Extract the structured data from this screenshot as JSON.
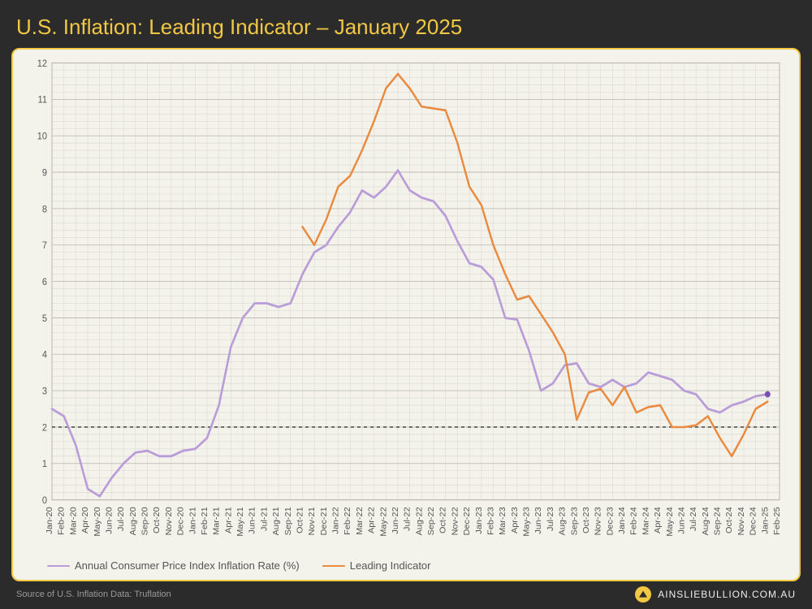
{
  "title": "U.S. Inflation: Leading Indicator – January 2025",
  "source": "Source of U.S. Inflation Data: Truflation",
  "brand": "AINSLIEBULLION.COM.AU",
  "chart": {
    "type": "line",
    "background_color": "#f3f2eb",
    "frame_border_color": "#f2c744",
    "grid_color_major": "#b8b6ad",
    "grid_color_minor": "#d9d7cd",
    "axis_color": "#555555",
    "reference_line": {
      "y": 2,
      "color": "#333333",
      "dash": "4,4",
      "width": 1.2
    },
    "ylim": [
      0,
      12
    ],
    "ytick_step": 1,
    "x_labels": [
      "Jan-20",
      "Feb-20",
      "Mar-20",
      "Apr-20",
      "May-20",
      "Jun-20",
      "Jul-20",
      "Aug-20",
      "Sep-20",
      "Oct-20",
      "Nov-20",
      "Dec-20",
      "Jan-21",
      "Feb-21",
      "Mar-21",
      "Apr-21",
      "May-21",
      "Jun-21",
      "Jul-21",
      "Aug-21",
      "Sep-21",
      "Oct-21",
      "Nov-21",
      "Dec-21",
      "Jan-22",
      "Feb-22",
      "Mar-22",
      "Apr-22",
      "May-22",
      "Jun-22",
      "Jul-22",
      "Aug-22",
      "Sep-22",
      "Oct-22",
      "Nov-22",
      "Dec-22",
      "Jan-23",
      "Feb-23",
      "Mar-23",
      "Apr-23",
      "May-23",
      "Jun-23",
      "Jul-23",
      "Aug-23",
      "Sep-23",
      "Oct-23",
      "Nov-23",
      "Dec-23",
      "Jan-24",
      "Feb-24",
      "Mar-24",
      "Apr-24",
      "May-24",
      "Jun-24",
      "Jul-24",
      "Aug-24",
      "Sep-24",
      "Oct-24",
      "Nov-24",
      "Dec-24",
      "Jan-25",
      "Feb-25"
    ],
    "series": [
      {
        "id": "cpi",
        "label": "Annual Consumer Price Index Inflation Rate (%)",
        "color": "#b99cd8",
        "width": 2.6,
        "end_marker": {
          "color": "#7a4fb0",
          "radius": 3.5
        },
        "values": [
          2.5,
          2.3,
          1.5,
          0.3,
          0.1,
          0.6,
          1.0,
          1.3,
          1.35,
          1.2,
          1.2,
          1.35,
          1.4,
          1.7,
          2.6,
          4.2,
          5.0,
          5.4,
          5.4,
          5.3,
          5.4,
          6.2,
          6.8,
          7.0,
          7.5,
          7.9,
          8.5,
          8.3,
          8.6,
          9.05,
          8.5,
          8.3,
          8.2,
          7.8,
          7.1,
          6.5,
          6.4,
          6.05,
          5.0,
          4.95,
          4.1,
          3.0,
          3.2,
          3.7,
          3.75,
          3.2,
          3.1,
          3.3,
          3.1,
          3.2,
          3.5,
          3.4,
          3.3,
          3.0,
          2.9,
          2.5,
          2.4,
          2.6,
          2.7,
          2.85,
          2.9,
          null
        ]
      },
      {
        "id": "leading",
        "label": "Leading Indicator",
        "color": "#e98a3f",
        "width": 2.4,
        "values": [
          null,
          null,
          null,
          null,
          null,
          null,
          null,
          null,
          null,
          null,
          null,
          null,
          null,
          null,
          null,
          null,
          null,
          null,
          null,
          null,
          null,
          7.5,
          7.0,
          7.7,
          8.6,
          8.9,
          9.6,
          10.4,
          11.3,
          11.7,
          11.3,
          10.8,
          10.75,
          10.7,
          9.8,
          8.6,
          8.1,
          7.0,
          6.2,
          5.5,
          5.6,
          5.1,
          4.6,
          4.0,
          2.2,
          2.95,
          3.05,
          2.6,
          3.1,
          2.4,
          2.55,
          2.6,
          2.0,
          2.0,
          2.05,
          2.3,
          1.7,
          1.2,
          1.8,
          2.5,
          2.7,
          null
        ]
      }
    ],
    "label_fontsize": 11,
    "tick_fontsize_x": 10
  }
}
